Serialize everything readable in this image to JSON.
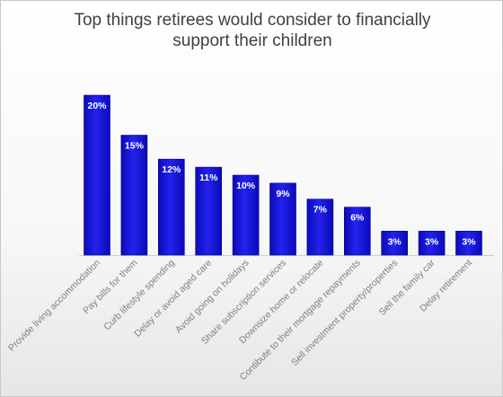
{
  "chart_data": {
    "type": "bar",
    "title": "Top things retirees would consider to financially support their children",
    "title_lines": [
      "Top things retirees would consider to financially",
      "support their children"
    ],
    "categories": [
      "Provide living accommodation",
      "Pay bills for them",
      "Curb lifestyle spending",
      "Delay or avoid aged care",
      "Avoid going on holidays",
      "Share subscription services",
      "Downsize home or relocate",
      "Contibute to their mortgage repayments",
      "Sell investment property/properties",
      "Sell the family car",
      "Delay retirement"
    ],
    "values": [
      20,
      15,
      12,
      11,
      10,
      9,
      7,
      6,
      3,
      3,
      3
    ],
    "data_labels": [
      "20%",
      "15%",
      "12%",
      "11%",
      "10%",
      "9%",
      "7%",
      "6%",
      "3%",
      "3%",
      "3%"
    ],
    "xlabel": "",
    "ylabel": "",
    "ylim": [
      0,
      21.5
    ],
    "grid": false,
    "legend": "none",
    "colors": {
      "bar_top": "#2323ee",
      "bar_bottom": "#0a0ab8",
      "bar_edge": "#00008a",
      "label_text": "#ffffff",
      "category_text": "#808080",
      "axis": "#cfcfcf"
    }
  }
}
